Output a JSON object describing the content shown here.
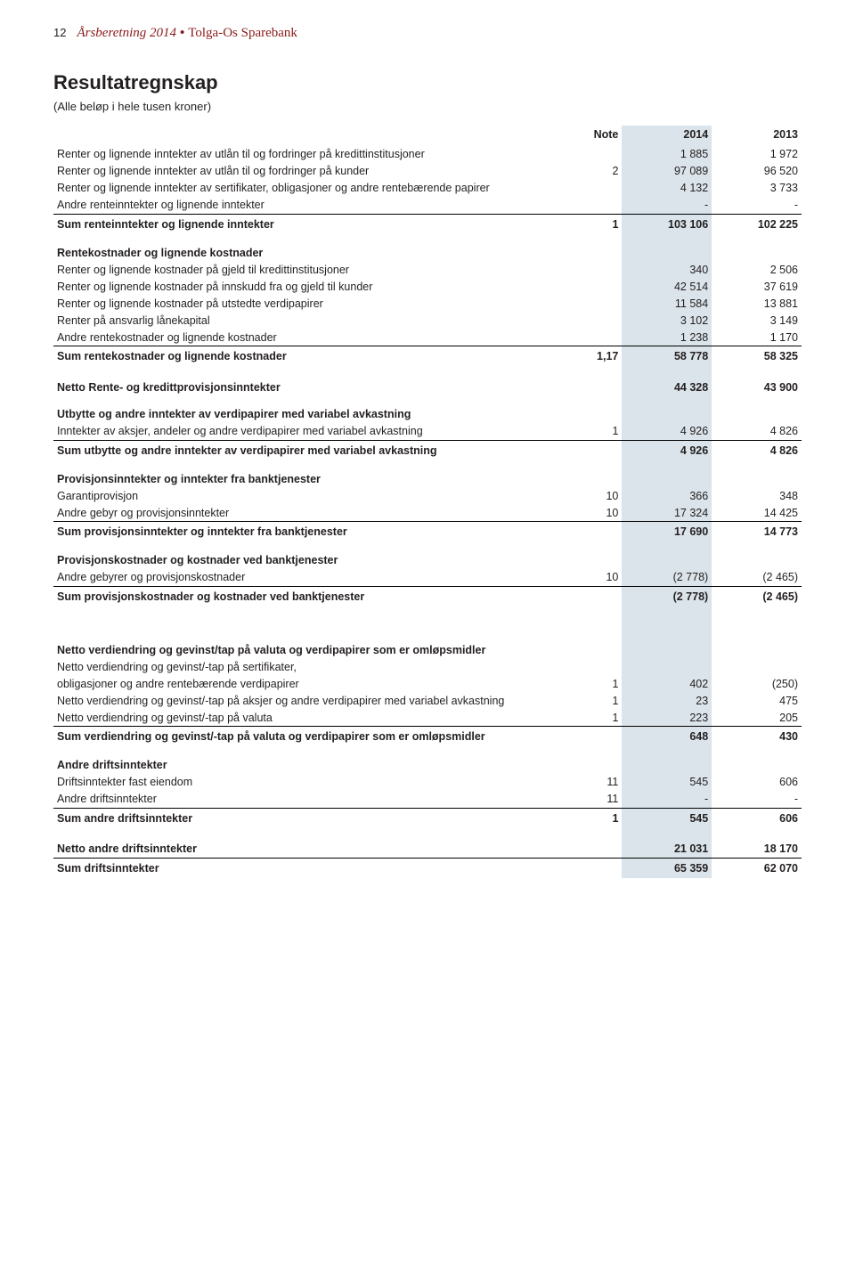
{
  "page_number": "12",
  "header": {
    "report_label": "Årsberetning 2014",
    "bank_name": "Tolga-Os Sparebank"
  },
  "doc": {
    "title": "Resultatregnskap",
    "subtitle": "(Alle beløp i hele tusen kroner)"
  },
  "columns": {
    "note": "Note",
    "year1": "2014",
    "year2": "2013"
  },
  "highlight_color": "#dbe4ea",
  "rows": [
    {
      "type": "row",
      "label": "Renter og lignende inntekter av utlån til og fordringer på kredittinstitusjoner",
      "note": "",
      "y1": "1 885",
      "y2": "1 972"
    },
    {
      "type": "row",
      "label": "Renter og lignende inntekter av utlån til og fordringer på kunder",
      "note": "2",
      "y1": "97 089",
      "y2": "96 520"
    },
    {
      "type": "row",
      "label": "Renter og lignende inntekter av sertifikater, obligasjoner og andre rentebærende papirer",
      "note": "",
      "y1": "4 132",
      "y2": "3 733"
    },
    {
      "type": "row",
      "label": "Andre renteinntekter og lignende inntekter",
      "note": "",
      "y1": "-",
      "y2": "-"
    },
    {
      "type": "sum",
      "label": "Sum renteinntekter og lignende inntekter",
      "note": "1",
      "y1": "103 106",
      "y2": "102 225"
    },
    {
      "type": "section",
      "label": "Rentekostnader og lignende kostnader"
    },
    {
      "type": "row",
      "label": "Renter og lignende kostnader på gjeld til kredittinstitusjoner",
      "note": "",
      "y1": "340",
      "y2": "2 506"
    },
    {
      "type": "row",
      "label": "Renter og lignende kostnader på innskudd fra og gjeld til kunder",
      "note": "",
      "y1": "42 514",
      "y2": "37 619"
    },
    {
      "type": "row",
      "label": "Renter og lignende kostnader på utstedte verdipapirer",
      "note": "",
      "y1": "11 584",
      "y2": "13 881"
    },
    {
      "type": "row",
      "label": "Renter på ansvarlig lånekapital",
      "note": "",
      "y1": "3 102",
      "y2": "3 149"
    },
    {
      "type": "row",
      "label": "Andre rentekostnader og lignende kostnader",
      "note": "",
      "y1": "1 238",
      "y2": "1 170"
    },
    {
      "type": "sum",
      "label": "Sum rentekostnader og lignende kostnader",
      "note": "1,17",
      "y1": "58 778",
      "y2": "58 325"
    },
    {
      "type": "gap"
    },
    {
      "type": "sum_plain",
      "label": "Netto Rente- og kredittprovisjonsinntekter",
      "note": "",
      "y1": "44 328",
      "y2": "43 900"
    },
    {
      "type": "section",
      "label": "Utbytte og andre inntekter av verdipapirer med variabel avkastning"
    },
    {
      "type": "row",
      "label": "Inntekter av aksjer, andeler og andre verdipapirer med variabel avkastning",
      "note": "1",
      "y1": "4 926",
      "y2": "4 826"
    },
    {
      "type": "sum",
      "label": "Sum utbytte og andre inntekter av verdipapirer med variabel avkastning",
      "note": "",
      "y1": "4 926",
      "y2": "4 826"
    },
    {
      "type": "section",
      "label": "Provisjonsinntekter og inntekter fra banktjenester"
    },
    {
      "type": "row",
      "label": "Garantiprovisjon",
      "note": "10",
      "y1": "366",
      "y2": "348"
    },
    {
      "type": "row",
      "label": "Andre gebyr og provisjonsinntekter",
      "note": "10",
      "y1": "17 324",
      "y2": "14 425"
    },
    {
      "type": "sum",
      "label": "Sum provisjonsinntekter og inntekter fra banktjenester",
      "note": "",
      "y1": "17 690",
      "y2": "14 773"
    },
    {
      "type": "section",
      "label": "Provisjonskostnader og kostnader ved banktjenester"
    },
    {
      "type": "row",
      "label": "Andre gebyrer og provisjonskostnader",
      "note": "10",
      "y1": "(2 778)",
      "y2": "(2 465)"
    },
    {
      "type": "sum",
      "label": "Sum provisjonskostnader og kostnader ved banktjenester",
      "note": "",
      "y1": "(2 778)",
      "y2": "(2 465)"
    },
    {
      "type": "big_gap"
    },
    {
      "type": "section",
      "label": "Netto verdiendring og gevinst/tap på valuta og verdipapirer som er omløpsmidler"
    },
    {
      "type": "row",
      "label": "Netto verdiendring og gevinst/-tap på sertifikater,",
      "note": "",
      "y1": "",
      "y2": ""
    },
    {
      "type": "row",
      "label": "obligasjoner og andre rentebærende verdipapirer",
      "note": "1",
      "y1": "402",
      "y2": "(250)"
    },
    {
      "type": "row",
      "label": "Netto verdiendring og gevinst/-tap på aksjer og andre verdipapirer med variabel avkastning",
      "note": "1",
      "y1": "23",
      "y2": "475"
    },
    {
      "type": "row",
      "label": "Netto verdiendring og gevinst/-tap på valuta",
      "note": "1",
      "y1": "223",
      "y2": "205"
    },
    {
      "type": "sum",
      "label": "Sum verdiendring og gevinst/-tap på valuta og verdipapirer som er omløpsmidler",
      "note": "",
      "y1": "648",
      "y2": "430"
    },
    {
      "type": "section",
      "label": "Andre driftsinntekter"
    },
    {
      "type": "row",
      "label": "Driftsinntekter fast eiendom",
      "note": "11",
      "y1": "545",
      "y2": "606"
    },
    {
      "type": "row",
      "label": "Andre driftsinntekter",
      "note": "11",
      "y1": "-",
      "y2": "-"
    },
    {
      "type": "sum",
      "label": "Sum andre driftsinntekter",
      "note": "1",
      "y1": "545",
      "y2": "606"
    },
    {
      "type": "gap"
    },
    {
      "type": "sum_plain",
      "label": "Netto andre driftsinntekter",
      "note": "",
      "y1": "21 031",
      "y2": "18 170"
    },
    {
      "type": "sum",
      "label": "Sum driftsinntekter",
      "note": "",
      "y1": "65 359",
      "y2": "62 070"
    }
  ]
}
